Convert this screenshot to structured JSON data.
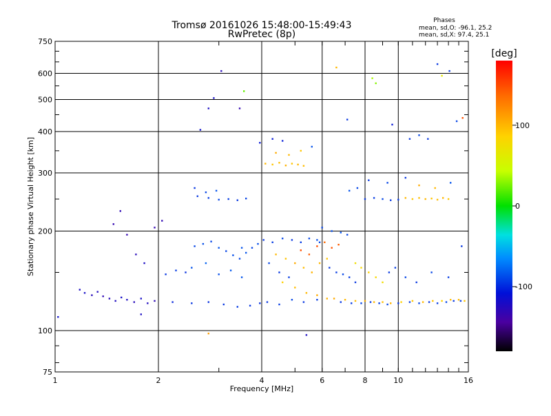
{
  "chart_data": {
    "type": "scatter",
    "title": "Tromsø 20161026 15:48:00-15:49:43",
    "subtitle": "RwPretec (8p)",
    "xlabel": "Frequency [MHz]",
    "ylabel": "Stationary phase Virtual Height [km]",
    "x_scale": "log",
    "y_scale": "log",
    "xlim": [
      1,
      16
    ],
    "ylim": [
      75,
      750
    ],
    "x_ticks": [
      1,
      2,
      4,
      6,
      8,
      10,
      16
    ],
    "y_ticks": [
      75,
      100,
      200,
      300,
      400,
      500,
      600,
      750
    ],
    "grid": true,
    "phases": {
      "heading": "Phases",
      "line_o": "mean, sd,O: -96.1, 25.2",
      "line_x": "mean, sd,X:  97.4, 25.1"
    },
    "colorbar": {
      "label": "[deg]",
      "range": [
        -180,
        180
      ],
      "ticks": [
        100,
        0,
        -100
      ]
    },
    "series": [
      {
        "points": [
          [
            1.18,
            133,
            -120
          ],
          [
            1.22,
            130,
            -118
          ],
          [
            1.28,
            128,
            -125
          ],
          [
            1.33,
            131,
            -122
          ],
          [
            1.38,
            127,
            -128
          ],
          [
            1.44,
            125,
            -125
          ],
          [
            1.5,
            123,
            -122
          ],
          [
            1.56,
            126,
            -118
          ],
          [
            1.62,
            124,
            -120
          ],
          [
            1.7,
            122,
            -125
          ],
          [
            1.78,
            125,
            -118
          ],
          [
            1.86,
            121,
            -122
          ],
          [
            1.95,
            123,
            -128
          ],
          [
            1.48,
            210,
            -130
          ],
          [
            1.55,
            230,
            -128
          ],
          [
            1.62,
            195,
            -130
          ],
          [
            1.72,
            170,
            -125
          ],
          [
            1.82,
            160,
            -120
          ],
          [
            1.95,
            205,
            -130
          ],
          [
            2.05,
            215,
            -128
          ],
          [
            2.1,
            148,
            -100
          ],
          [
            2.25,
            152,
            -98
          ],
          [
            2.4,
            150,
            -102
          ],
          [
            2.55,
            180,
            -95
          ],
          [
            2.7,
            183,
            -92
          ],
          [
            2.85,
            186,
            -95
          ],
          [
            3.0,
            178,
            -90
          ],
          [
            3.15,
            174,
            -95
          ],
          [
            3.3,
            169,
            -92
          ],
          [
            3.45,
            165,
            -95
          ],
          [
            3.6,
            172,
            -90
          ],
          [
            3.75,
            178,
            -95
          ],
          [
            3.9,
            183,
            -92
          ],
          [
            2.2,
            122,
            -105
          ],
          [
            2.5,
            121,
            -100
          ],
          [
            2.8,
            122,
            -102
          ],
          [
            3.1,
            120,
            -100
          ],
          [
            3.4,
            118,
            -98
          ],
          [
            3.7,
            119,
            -100
          ],
          [
            3.95,
            121,
            -102
          ],
          [
            2.5,
            155,
            -90
          ],
          [
            2.75,
            160,
            -85
          ],
          [
            3.0,
            148,
            -92
          ],
          [
            3.25,
            152,
            -88
          ],
          [
            3.5,
            145,
            -90
          ],
          [
            2.6,
            255,
            -100
          ],
          [
            2.8,
            252,
            -98
          ],
          [
            3.0,
            249,
            -95
          ],
          [
            3.2,
            250,
            -98
          ],
          [
            3.4,
            248,
            -100
          ],
          [
            3.6,
            251,
            -96
          ],
          [
            2.55,
            270,
            -100
          ],
          [
            2.75,
            262,
            -95
          ],
          [
            2.95,
            265,
            -90
          ],
          [
            2.65,
            405,
            -115
          ],
          [
            2.8,
            470,
            -120
          ],
          [
            2.9,
            505,
            -118
          ],
          [
            3.05,
            610,
            -125
          ],
          [
            3.45,
            470,
            -130
          ],
          [
            3.55,
            530,
            30
          ],
          [
            4.05,
            188,
            -100
          ],
          [
            4.3,
            185,
            -98
          ],
          [
            4.6,
            190,
            -95
          ],
          [
            4.9,
            188,
            -100
          ],
          [
            5.2,
            185,
            -98
          ],
          [
            5.5,
            190,
            -95
          ],
          [
            5.8,
            188,
            -92
          ],
          [
            4.2,
            160,
            -95
          ],
          [
            4.5,
            150,
            -100
          ],
          [
            4.8,
            145,
            -98
          ],
          [
            4.15,
            122,
            -100
          ],
          [
            4.5,
            120,
            -98
          ],
          [
            4.9,
            124,
            -95
          ],
          [
            5.3,
            122,
            -100
          ],
          [
            5.8,
            124,
            -98
          ],
          [
            4.1,
            320,
            110
          ],
          [
            4.3,
            318,
            105
          ],
          [
            4.5,
            322,
            108
          ],
          [
            4.7,
            316,
            112
          ],
          [
            4.9,
            320,
            105
          ],
          [
            5.1,
            318,
            110
          ],
          [
            5.3,
            315,
            108
          ],
          [
            4.4,
            345,
            115
          ],
          [
            4.8,
            340,
            110
          ],
          [
            5.2,
            350,
            105
          ],
          [
            5.6,
            360,
            -90
          ],
          [
            4.3,
            380,
            -110
          ],
          [
            4.6,
            375,
            -108
          ],
          [
            4.4,
            170,
            110
          ],
          [
            4.7,
            165,
            105
          ],
          [
            5.0,
            160,
            115
          ],
          [
            5.3,
            155,
            108
          ],
          [
            5.6,
            150,
            112
          ],
          [
            5.9,
            160,
            110
          ],
          [
            6.2,
            165,
            105
          ],
          [
            4.6,
            140,
            100
          ],
          [
            5.0,
            135,
            108
          ],
          [
            5.4,
            130,
            110
          ],
          [
            5.8,
            128,
            115
          ],
          [
            6.2,
            125,
            112
          ],
          [
            5.2,
            175,
            150
          ],
          [
            5.5,
            170,
            145
          ],
          [
            5.8,
            180,
            150
          ],
          [
            6.1,
            185,
            140
          ],
          [
            6.4,
            178,
            148
          ],
          [
            6.7,
            182,
            145
          ],
          [
            6.0,
            205,
            -95
          ],
          [
            6.4,
            200,
            -92
          ],
          [
            6.8,
            198,
            -90
          ],
          [
            7.1,
            195,
            -95
          ],
          [
            6.3,
            155,
            -100
          ],
          [
            6.6,
            150,
            -98
          ],
          [
            6.9,
            148,
            -95
          ],
          [
            7.2,
            145,
            -98
          ],
          [
            7.5,
            140,
            -100
          ],
          [
            6.5,
            125,
            115
          ],
          [
            7.0,
            124,
            110
          ],
          [
            7.5,
            123,
            108
          ],
          [
            8.0,
            123,
            112
          ],
          [
            8.5,
            122,
            110
          ],
          [
            9.0,
            122,
            108
          ],
          [
            9.5,
            121,
            112
          ],
          [
            6.8,
            122,
            -100
          ],
          [
            7.3,
            121,
            -98
          ],
          [
            7.8,
            121,
            -95
          ],
          [
            8.3,
            122,
            -100
          ],
          [
            8.8,
            121,
            -98
          ],
          [
            9.3,
            120,
            -95
          ],
          [
            10.0,
            121,
            -100
          ],
          [
            10.8,
            122,
            -98
          ],
          [
            11.5,
            121,
            -95
          ],
          [
            12.3,
            122,
            -100
          ],
          [
            13.0,
            121,
            -98
          ],
          [
            13.8,
            122,
            -95
          ],
          [
            14.5,
            123,
            -100
          ],
          [
            15.2,
            123,
            -98
          ],
          [
            10.2,
            122,
            100
          ],
          [
            11.0,
            123,
            105
          ],
          [
            11.8,
            122,
            110
          ],
          [
            12.6,
            123,
            105
          ],
          [
            13.4,
            123,
            100
          ],
          [
            14.2,
            124,
            108
          ],
          [
            15.0,
            124,
            110
          ],
          [
            15.6,
            123,
            105
          ],
          [
            8.0,
            250,
            -100
          ],
          [
            8.5,
            252,
            -98
          ],
          [
            9.0,
            250,
            -95
          ],
          [
            9.5,
            248,
            -100
          ],
          [
            10.0,
            249,
            -98
          ],
          [
            10.5,
            252,
            110
          ],
          [
            11.0,
            250,
            105
          ],
          [
            11.5,
            252,
            108
          ],
          [
            12.0,
            250,
            110
          ],
          [
            12.5,
            251,
            105
          ],
          [
            13.0,
            249,
            108
          ],
          [
            13.5,
            252,
            110
          ],
          [
            14.0,
            250,
            105
          ],
          [
            7.2,
            265,
            -90
          ],
          [
            7.6,
            270,
            -95
          ],
          [
            8.2,
            285,
            -100
          ],
          [
            9.3,
            280,
            -95
          ],
          [
            10.5,
            290,
            -100
          ],
          [
            11.5,
            275,
            115
          ],
          [
            12.8,
            270,
            110
          ],
          [
            14.2,
            280,
            -90
          ],
          [
            7.5,
            160,
            90
          ],
          [
            7.8,
            155,
            95
          ],
          [
            8.2,
            150,
            100
          ],
          [
            8.6,
            145,
            95
          ],
          [
            9.0,
            140,
            90
          ],
          [
            9.4,
            150,
            -100
          ],
          [
            9.8,
            155,
            -98
          ],
          [
            10.5,
            145,
            -95
          ],
          [
            11.3,
            140,
            -100
          ],
          [
            12.5,
            150,
            -95
          ],
          [
            14.0,
            145,
            -98
          ],
          [
            15.3,
            180,
            -100
          ],
          [
            8.4,
            580,
            50
          ],
          [
            8.6,
            560,
            40
          ],
          [
            10.8,
            380,
            -100
          ],
          [
            11.5,
            390,
            -95
          ],
          [
            12.2,
            380,
            -100
          ],
          [
            13.4,
            590,
            80
          ],
          [
            14.1,
            610,
            -100
          ],
          [
            14.8,
            430,
            -95
          ],
          [
            15.4,
            440,
            150
          ],
          [
            13.0,
            640,
            -100
          ],
          [
            6.6,
            625,
            110
          ],
          [
            7.1,
            435,
            -100
          ],
          [
            9.6,
            420,
            -110
          ],
          [
            3.95,
            370,
            -110
          ],
          [
            5.9,
            185,
            -95
          ],
          [
            3.5,
            178,
            -90
          ],
          [
            1.02,
            110,
            -115
          ],
          [
            1.78,
            112,
            -120
          ],
          [
            2.8,
            98,
            120
          ],
          [
            5.4,
            97,
            -120
          ]
        ]
      }
    ]
  }
}
